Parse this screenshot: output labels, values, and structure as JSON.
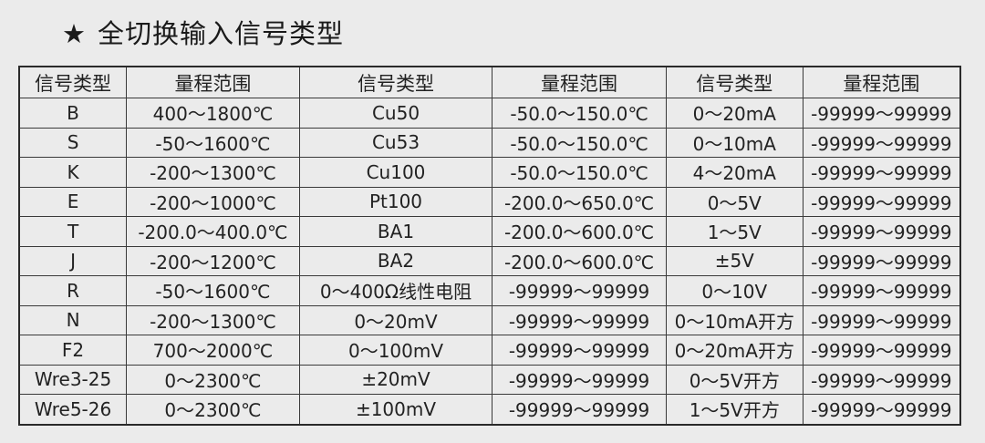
{
  "title": {
    "icon": "star-icon",
    "text": "全切换输入信号类型"
  },
  "table": {
    "headers": [
      "信号类型",
      "量程范围",
      "信号类型",
      "量程范围",
      "信号类型",
      "量程范围"
    ],
    "rows": [
      [
        "B",
        "400～1800℃",
        "Cu50",
        "-50.0～150.0℃",
        "0～20mA",
        "-99999～99999"
      ],
      [
        "S",
        "-50～1600℃",
        "Cu53",
        "-50.0～150.0℃",
        "0～10mA",
        "-99999～99999"
      ],
      [
        "K",
        "-200～1300℃",
        "Cu100",
        "-50.0～150.0℃",
        "4～20mA",
        "-99999～99999"
      ],
      [
        "E",
        "-200～1000℃",
        "Pt100",
        "-200.0～650.0℃",
        "0～5V",
        "-99999～99999"
      ],
      [
        "T",
        "-200.0～400.0℃",
        "BA1",
        "-200.0～600.0℃",
        "1～5V",
        "-99999～99999"
      ],
      [
        "J",
        "-200～1200℃",
        "BA2",
        "-200.0～600.0℃",
        "±5V",
        "-99999～99999"
      ],
      [
        "R",
        "-50～1600℃",
        "0～400Ω线性电阻",
        "-99999～99999",
        "0～10V",
        "-99999～99999"
      ],
      [
        "N",
        "-200～1300℃",
        "0～20mV",
        "-99999～99999",
        "0～10mA开方",
        "-99999～99999"
      ],
      [
        "F2",
        "700～2000℃",
        "0～100mV",
        "-99999～99999",
        "0～20mA开方",
        "-99999～99999"
      ],
      [
        "Wre3-25",
        "0～2300℃",
        "±20mV",
        "-99999～99999",
        "0～5V开方",
        "-99999～99999"
      ],
      [
        "Wre5-26",
        "0～2300℃",
        "±100mV",
        "-99999～99999",
        "1～5V开方",
        "-99999～99999"
      ]
    ]
  }
}
